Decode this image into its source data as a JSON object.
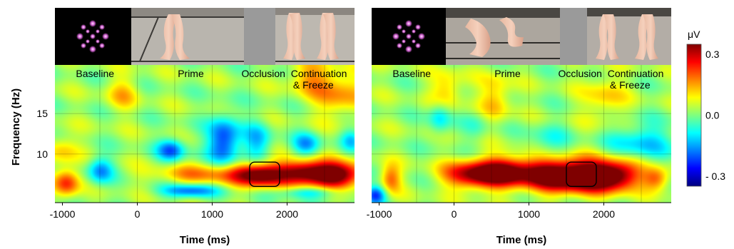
{
  "chart_data": [
    {
      "type": "heatmap",
      "xlabel": "Time (ms)",
      "ylabel": "Frequency (Hz)",
      "xlim": [
        -1100,
        2900
      ],
      "ylim": [
        4,
        21
      ],
      "x_ticks": [
        "-1000",
        "0",
        "1000",
        "2000"
      ],
      "x_tick_values": [
        -1000,
        0,
        1000,
        2000
      ],
      "y_ticks": [
        "10",
        "15"
      ],
      "y_tick_values": [
        10,
        15
      ],
      "phase_labels": [
        "Baseline",
        "Prime",
        "Occlusion",
        "Continuation",
        "& Freeze"
      ],
      "highlight_box": {
        "x0": 1500,
        "x1": 1900,
        "y0": 6,
        "y1": 9
      },
      "blobs": [
        {
          "t": 1300,
          "f": 7.5,
          "st": 500,
          "sf": 1.2,
          "a": 0.12
        },
        {
          "t": 1650,
          "f": 7.5,
          "st": 220,
          "sf": 1.0,
          "a": 0.28
        },
        {
          "t": 2200,
          "f": 7.8,
          "st": 230,
          "sf": 1.0,
          "a": 0.28
        },
        {
          "t": 2650,
          "f": 7.5,
          "st": 260,
          "sf": 1.1,
          "a": 0.38
        },
        {
          "t": 800,
          "f": 7.5,
          "st": 500,
          "sf": 0.8,
          "a": 0.08
        },
        {
          "t": -950,
          "f": 6.5,
          "st": 120,
          "sf": 1.2,
          "a": 0.22
        },
        {
          "t": -1000,
          "f": 10.5,
          "st": 150,
          "sf": 1.4,
          "a": 0.1
        },
        {
          "t": 2700,
          "f": 17.5,
          "st": 250,
          "sf": 2,
          "a": 0.14
        },
        {
          "t": 2300,
          "f": 19.5,
          "st": 200,
          "sf": 1.5,
          "a": 0.12
        },
        {
          "t": -200,
          "f": 17.5,
          "st": 150,
          "sf": 1.5,
          "a": 0.1
        },
        {
          "t": 450,
          "f": 10.5,
          "st": 130,
          "sf": 1.0,
          "a": -0.22
        },
        {
          "t": 1150,
          "f": 11.5,
          "st": 150,
          "sf": 2.2,
          "a": -0.26
        },
        {
          "t": -500,
          "f": 8.0,
          "st": 120,
          "sf": 1.2,
          "a": -0.18
        },
        {
          "t": 700,
          "f": 5.5,
          "st": 260,
          "sf": 0.6,
          "a": -0.22
        },
        {
          "t": 1600,
          "f": 11.5,
          "st": 130,
          "sf": 1.8,
          "a": -0.14
        },
        {
          "t": 2250,
          "f": 11.2,
          "st": 130,
          "sf": 1.0,
          "a": -0.16
        },
        {
          "t": 2850,
          "f": 11.8,
          "st": 100,
          "sf": 1.0,
          "a": -0.12
        },
        {
          "t": 2300,
          "f": 5.3,
          "st": 300,
          "sf": 0.5,
          "a": -0.12
        }
      ],
      "base": 0.02
    },
    {
      "type": "heatmap",
      "xlabel": "Time (ms)",
      "ylabel": "",
      "xlim": [
        -1100,
        2900
      ],
      "ylim": [
        4,
        21
      ],
      "x_ticks": [
        "-1000",
        "0",
        "1000",
        "2000"
      ],
      "x_tick_values": [
        -1000,
        0,
        1000,
        2000
      ],
      "y_ticks": [],
      "y_tick_values": [],
      "phase_labels": [
        "Baseline",
        "Prime",
        "Occlusion",
        "Continuation",
        "& Freeze"
      ],
      "highlight_box": {
        "x0": 1500,
        "x1": 1900,
        "y0": 6,
        "y1": 9
      },
      "blobs": [
        {
          "t": 250,
          "f": 7.5,
          "st": 280,
          "sf": 1.2,
          "a": 0.3
        },
        {
          "t": 700,
          "f": 7.8,
          "st": 260,
          "sf": 1.3,
          "a": 0.32
        },
        {
          "t": 1250,
          "f": 7.5,
          "st": 260,
          "sf": 1.4,
          "a": 0.3
        },
        {
          "t": 1700,
          "f": 7.3,
          "st": 280,
          "sf": 1.4,
          "a": 0.38
        },
        {
          "t": 2150,
          "f": 7.4,
          "st": 240,
          "sf": 1.3,
          "a": 0.34
        },
        {
          "t": 2700,
          "f": 7.0,
          "st": 120,
          "sf": 1.0,
          "a": 0.18
        },
        {
          "t": -850,
          "f": 7.0,
          "st": 100,
          "sf": 1.2,
          "a": 0.18
        },
        {
          "t": 550,
          "f": 17,
          "st": 150,
          "sf": 2,
          "a": 0.12
        },
        {
          "t": -100,
          "f": 18,
          "st": 150,
          "sf": 1.5,
          "a": 0.12
        },
        {
          "t": 2000,
          "f": 17,
          "st": 200,
          "sf": 2.0,
          "a": 0.1
        },
        {
          "t": 2500,
          "f": 11.5,
          "st": 300,
          "sf": 1.6,
          "a": -0.14
        },
        {
          "t": 1250,
          "f": 11.5,
          "st": 200,
          "sf": 1.6,
          "a": -0.08
        },
        {
          "t": -1050,
          "f": 5.0,
          "st": 100,
          "sf": 0.8,
          "a": -0.25
        },
        {
          "t": -200,
          "f": 14.5,
          "st": 100,
          "sf": 1.5,
          "a": -0.12
        },
        {
          "t": 300,
          "f": 13.5,
          "st": 120,
          "sf": 1.5,
          "a": -0.06
        }
      ],
      "base": 0.02
    }
  ],
  "colorbar": {
    "unit": "μV",
    "tick_labels": [
      "0.3",
      "0.0",
      "- 0.3"
    ],
    "tick_values": [
      0.3,
      0.0,
      -0.3
    ],
    "range": [
      -0.35,
      0.35
    ],
    "colormap": "jet"
  },
  "photo_strip": {
    "panels": [
      "pinwheel-stimulus",
      "walking-figure-frame",
      "gray-occluder",
      "walking-figure-continuation"
    ]
  }
}
